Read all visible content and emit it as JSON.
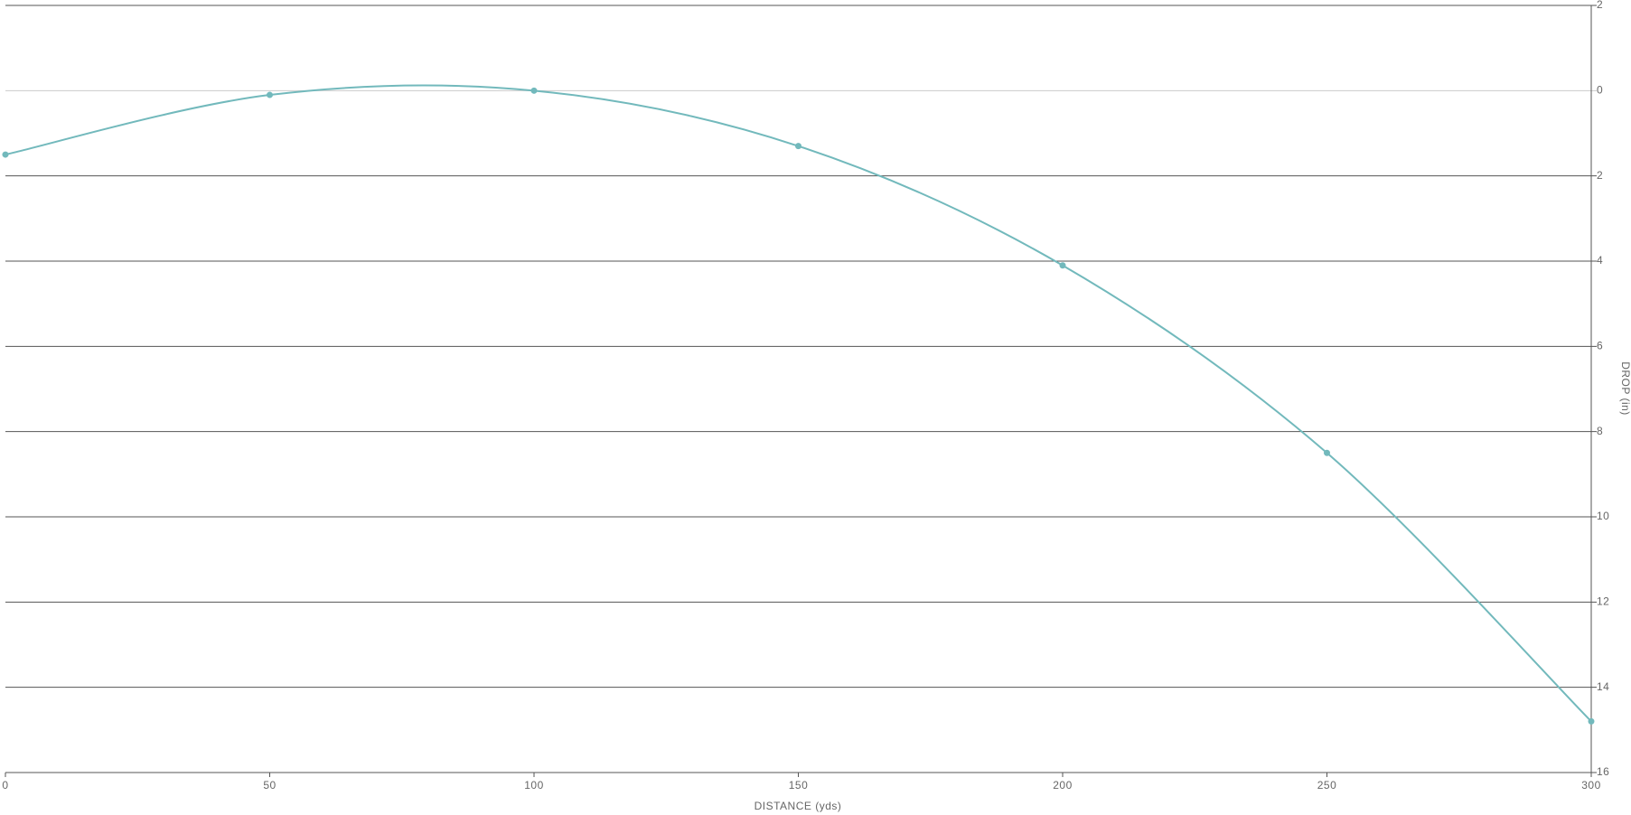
{
  "chart_data": {
    "type": "line",
    "x_label": "DISTANCE (yds)",
    "y_label": "DROP (in)",
    "x": [
      0,
      50,
      100,
      150,
      200,
      250,
      300
    ],
    "series": [
      {
        "color": "#72b9bc",
        "values": [
          1.5,
          0.1,
          0,
          1.3,
          4.1,
          8.5,
          14.8
        ]
      }
    ],
    "xlim": [
      0,
      300
    ],
    "xticks": [
      0,
      50,
      100,
      150,
      200,
      250,
      300
    ],
    "ylim": [
      -2,
      16
    ],
    "y_inverted": true,
    "yticks": [
      {
        "value": -2,
        "label": "2"
      },
      0,
      2,
      4,
      6,
      8,
      10,
      12,
      14,
      16
    ],
    "grid": true
  }
}
